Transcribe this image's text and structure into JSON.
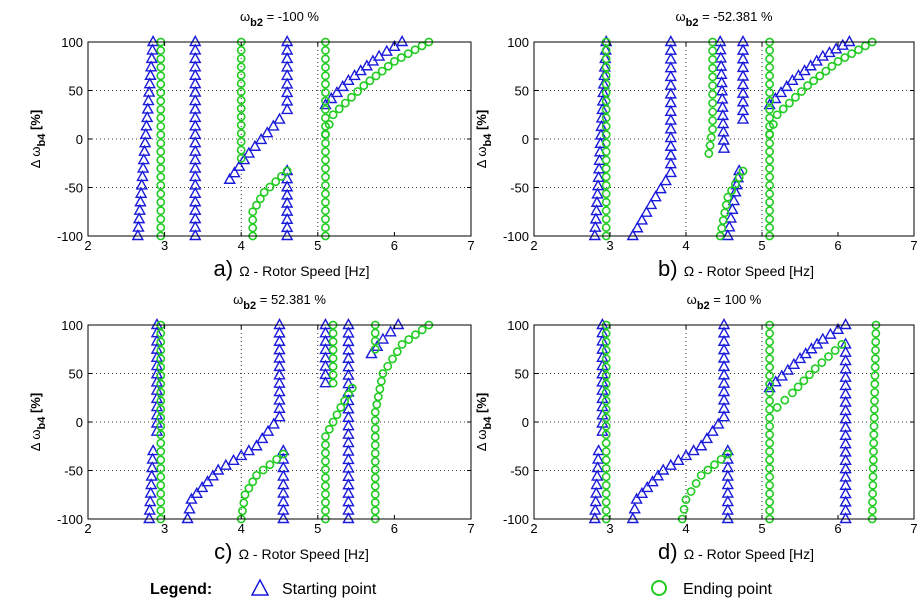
{
  "chart_data": [
    {
      "type": "scatter",
      "panel": "a)",
      "title_main": "ω",
      "title_sub": "b2",
      "title_rest": " = -100 %",
      "xlabel": "Ω - Rotor Speed [Hz]",
      "ylabel_main": "Δ ω",
      "ylabel_sub": "b4",
      "ylabel_rest": " [%]",
      "xlim": [
        2,
        7
      ],
      "ylim": [
        -100,
        100
      ],
      "xticks": [
        2,
        3,
        4,
        5,
        6,
        7
      ],
      "yticks": [
        -100,
        -50,
        0,
        50,
        100
      ],
      "grid": "dotted at x=4, x=5, y=50, y=0, y=-50",
      "series": [
        {
          "name": "Starting point",
          "marker": "triangle",
          "color": "#1a1adb",
          "curves": [
            {
              "x": [
                2.85,
                2.65
              ],
              "y": [
                100,
                -100
              ]
            },
            {
              "x": [
                3.4,
                3.4
              ],
              "y": [
                100,
                -100
              ]
            },
            {
              "x": [
                4.6,
                4.6
              ],
              "y": [
                100,
                30
              ]
            },
            {
              "x": [
                4.6,
                4.6
              ],
              "y": [
                -33,
                -100
              ]
            },
            {
              "x": [
                6.1,
                5.8,
                5.4,
                5.1
              ],
              "y": [
                100,
                85,
                60,
                35
              ]
            },
            {
              "x": [
                4.5,
                4.1,
                3.85
              ],
              "y": [
                20,
                -15,
                -42
              ]
            }
          ]
        },
        {
          "name": "Ending point",
          "marker": "circle",
          "color": "#22cc22",
          "curves": [
            {
              "x": [
                2.95,
                2.95
              ],
              "y": [
                100,
                -100
              ]
            },
            {
              "x": [
                4.0,
                4.0
              ],
              "y": [
                100,
                -20
              ]
            },
            {
              "x": [
                5.1,
                5.1
              ],
              "y": [
                100,
                -100
              ]
            },
            {
              "x": [
                6.45,
                6.0,
                5.6,
                5.2,
                5.1
              ],
              "y": [
                100,
                80,
                55,
                25,
                5
              ]
            },
            {
              "x": [
                4.6,
                4.3,
                4.15,
                4.15
              ],
              "y": [
                -33,
                -55,
                -75,
                -100
              ]
            }
          ]
        }
      ]
    },
    {
      "type": "scatter",
      "panel": "b)",
      "title_main": "ω",
      "title_sub": "b2",
      "title_rest": " = -52.381 %",
      "xlabel": "Ω - Rotor Speed [Hz]",
      "ylabel_main": "Δ ω",
      "ylabel_sub": "b4",
      "ylabel_rest": " [%]",
      "xlim": [
        2,
        7
      ],
      "ylim": [
        -100,
        100
      ],
      "xticks": [
        2,
        3,
        4,
        5,
        6,
        7
      ],
      "yticks": [
        -100,
        -50,
        0,
        50,
        100
      ],
      "grid": "dotted at x=4, x=5, y=50, y=0, y=-50",
      "series": [
        {
          "name": "Starting point",
          "marker": "triangle",
          "color": "#1a1adb",
          "curves": [
            {
              "x": [
                2.95,
                2.85,
                2.8
              ],
              "y": [
                100,
                -40,
                -100
              ]
            },
            {
              "x": [
                3.8,
                3.8,
                3.6,
                3.3
              ],
              "y": [
                100,
                -35,
                -60,
                -100
              ]
            },
            {
              "x": [
                4.45,
                4.5
              ],
              "y": [
                100,
                -10
              ]
            },
            {
              "x": [
                4.75,
                4.75
              ],
              "y": [
                100,
                20
              ]
            },
            {
              "x": [
                4.7,
                4.65,
                4.55
              ],
              "y": [
                -33,
                -55,
                -100
              ]
            },
            {
              "x": [
                6.15,
                5.8,
                5.4,
                5.1
              ],
              "y": [
                100,
                85,
                60,
                35
              ]
            }
          ]
        },
        {
          "name": "Ending point",
          "marker": "circle",
          "color": "#22cc22",
          "curves": [
            {
              "x": [
                2.95,
                2.95
              ],
              "y": [
                100,
                -100
              ]
            },
            {
              "x": [
                4.35,
                4.35,
                4.3
              ],
              "y": [
                100,
                10,
                -15
              ]
            },
            {
              "x": [
                5.1,
                5.1
              ],
              "y": [
                100,
                -100
              ]
            },
            {
              "x": [
                6.45,
                6.0,
                5.6,
                5.2,
                5.1
              ],
              "y": [
                100,
                80,
                55,
                25,
                5
              ]
            },
            {
              "x": [
                4.75,
                4.55,
                4.45
              ],
              "y": [
                -33,
                -60,
                -100
              ]
            }
          ]
        }
      ]
    },
    {
      "type": "scatter",
      "panel": "c)",
      "title_main": "ω",
      "title_sub": "b2",
      "title_rest": " = 52.381 %",
      "xlabel": "Ω - Rotor Speed [Hz]",
      "ylabel_main": "Δ ω",
      "ylabel_sub": "b4",
      "ylabel_rest": " [%]",
      "xlim": [
        2,
        7
      ],
      "ylim": [
        -100,
        100
      ],
      "xticks": [
        2,
        3,
        4,
        5,
        6,
        7
      ],
      "yticks": [
        -100,
        -50,
        0,
        50,
        100
      ],
      "grid": "dotted at x=4, x=5, y=50, y=0, y=-50",
      "series": [
        {
          "name": "Starting point",
          "marker": "triangle",
          "color": "#1a1adb",
          "curves": [
            {
              "x": [
                2.9,
                2.9
              ],
              "y": [
                100,
                -10
              ]
            },
            {
              "x": [
                2.85,
                2.8
              ],
              "y": [
                -30,
                -100
              ]
            },
            {
              "x": [
                4.5,
                4.5,
                4.2,
                3.7,
                3.35,
                3.3
              ],
              "y": [
                100,
                5,
                -25,
                -50,
                -80,
                -100
              ]
            },
            {
              "x": [
                4.55,
                4.55
              ],
              "y": [
                -30,
                -100
              ]
            },
            {
              "x": [
                5.1,
                5.1
              ],
              "y": [
                100,
                40
              ]
            },
            {
              "x": [
                5.4,
                5.4
              ],
              "y": [
                100,
                -100
              ]
            },
            {
              "x": [
                6.05,
                5.85,
                5.7
              ],
              "y": [
                100,
                85,
                70
              ]
            }
          ]
        },
        {
          "name": "Ending point",
          "marker": "circle",
          "color": "#22cc22",
          "curves": [
            {
              "x": [
                2.95,
                2.95
              ],
              "y": [
                100,
                -100
              ]
            },
            {
              "x": [
                4.55,
                4.2,
                4.05,
                4.0
              ],
              "y": [
                -33,
                -55,
                -75,
                -100
              ]
            },
            {
              "x": [
                5.2,
                5.2
              ],
              "y": [
                100,
                40
              ]
            },
            {
              "x": [
                5.45,
                5.3,
                5.1,
                5.1
              ],
              "y": [
                35,
                15,
                -15,
                -100
              ]
            },
            {
              "x": [
                5.75,
                5.75
              ],
              "y": [
                100,
                75
              ]
            },
            {
              "x": [
                6.45,
                6.1,
                5.85,
                5.75,
                5.75
              ],
              "y": [
                100,
                80,
                50,
                10,
                -100
              ]
            }
          ]
        }
      ]
    },
    {
      "type": "scatter",
      "panel": "d)",
      "title_main": "ω",
      "title_sub": "b2",
      "title_rest": " = 100 %",
      "xlabel": "Ω - Rotor Speed [Hz]",
      "ylabel_main": "Δ ω",
      "ylabel_sub": "b4",
      "ylabel_rest": " [%]",
      "xlim": [
        2,
        7
      ],
      "ylim": [
        -100,
        100
      ],
      "xticks": [
        2,
        3,
        4,
        5,
        6,
        7
      ],
      "yticks": [
        -100,
        -50,
        0,
        50,
        100
      ],
      "grid": "dotted at x=4, x=5, y=50, y=0, y=-50",
      "series": [
        {
          "name": "Starting point",
          "marker": "triangle",
          "color": "#1a1adb",
          "curves": [
            {
              "x": [
                2.9,
                2.9
              ],
              "y": [
                100,
                -10
              ]
            },
            {
              "x": [
                2.85,
                2.8
              ],
              "y": [
                -30,
                -100
              ]
            },
            {
              "x": [
                4.5,
                4.5,
                4.2,
                3.7,
                3.35,
                3.3
              ],
              "y": [
                100,
                5,
                -25,
                -50,
                -80,
                -100
              ]
            },
            {
              "x": [
                4.55,
                4.55
              ],
              "y": [
                -30,
                -100
              ]
            },
            {
              "x": [
                6.1,
                5.8,
                5.5,
                5.1
              ],
              "y": [
                100,
                85,
                65,
                35
              ]
            },
            {
              "x": [
                6.1,
                6.1
              ],
              "y": [
                80,
                -100
              ]
            }
          ]
        },
        {
          "name": "Ending point",
          "marker": "circle",
          "color": "#22cc22",
          "curves": [
            {
              "x": [
                2.95,
                2.95
              ],
              "y": [
                100,
                -100
              ]
            },
            {
              "x": [
                4.55,
                4.2,
                4.0,
                3.95
              ],
              "y": [
                -33,
                -55,
                -80,
                -100
              ]
            },
            {
              "x": [
                5.1,
                5.1
              ],
              "y": [
                100,
                -100
              ]
            },
            {
              "x": [
                6.05,
                5.7,
                5.4,
                5.2
              ],
              "y": [
                80,
                55,
                30,
                15
              ]
            },
            {
              "x": [
                6.5,
                6.45
              ],
              "y": [
                100,
                -100
              ]
            }
          ]
        }
      ]
    }
  ],
  "legend": {
    "title": "Legend:",
    "starting_label": "Starting point",
    "ending_label": "Ending point",
    "starting_color": "#1a1adb",
    "ending_color": "#22cc22"
  }
}
